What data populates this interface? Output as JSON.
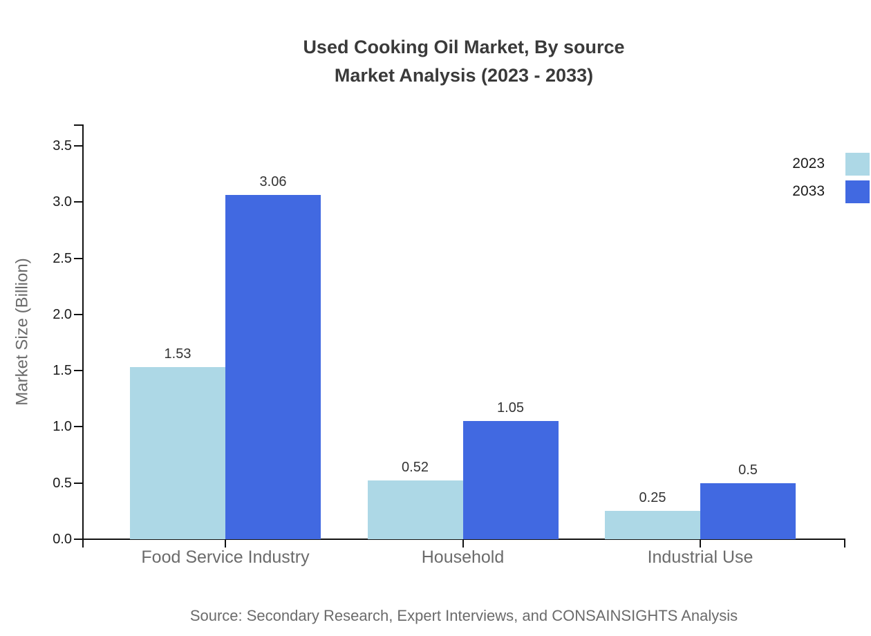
{
  "title": {
    "line1": "Used Cooking Oil Market, By source",
    "line2": "Market Analysis (2023 - 2033)"
  },
  "axes": {
    "y_title": "Market Size (Billion)"
  },
  "legend": [
    {
      "label": "2023",
      "color": "#ADD8E6"
    },
    {
      "label": "2033",
      "color": "#4169E1"
    }
  ],
  "source": "Source: Secondary Research, Expert Interviews, and CONSAINSIGHTS Analysis",
  "colors": {
    "series_2023": "#ADD8E6",
    "series_2033": "#4169E1",
    "axis": "#111111",
    "tick_label": "#1a1a1a",
    "category_label": "#6b6b6b",
    "title_text": "#3a3a3a",
    "value_label": "#333333",
    "source_text": "#6b6b6b"
  },
  "chart_data": {
    "type": "bar",
    "title": "Used Cooking Oil Market, By source Market Analysis (2023 - 2033)",
    "categories": [
      "Food Service Industry",
      "Household",
      "Industrial Use"
    ],
    "series": [
      {
        "name": "2023",
        "color": "#ADD8E6",
        "values": [
          1.53,
          0.52,
          0.25
        ]
      },
      {
        "name": "2033",
        "color": "#4169E1",
        "values": [
          3.06,
          1.05,
          0.5
        ]
      }
    ],
    "bar_value_labels": [
      [
        "1.53",
        "0.52",
        "0.25"
      ],
      [
        "3.06",
        "1.05",
        "0.5"
      ]
    ],
    "xlabel": "",
    "ylabel": "Market Size (Billion)",
    "ylim": [
      0,
      3.69
    ],
    "yticks": [
      0.0,
      0.5,
      1.0,
      1.5,
      2.0,
      2.5,
      3.0,
      3.5
    ],
    "ytick_labels": [
      "0.0",
      "0.5",
      "1.0",
      "1.5",
      "2.0",
      "2.5",
      "3.0",
      "3.5"
    ],
    "grid": false,
    "legend_position": "top-right",
    "value_labels_shown": true
  }
}
